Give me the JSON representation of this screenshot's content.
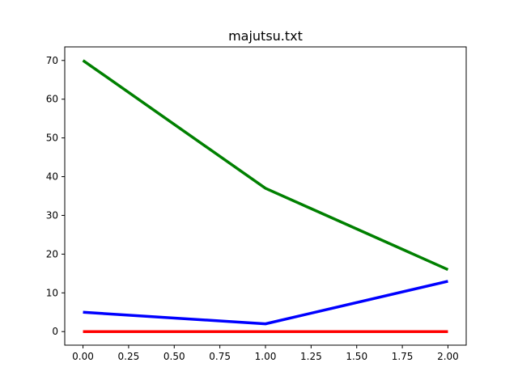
{
  "chart_data": {
    "type": "line",
    "title": "majutsu.txt",
    "xlabel": "",
    "ylabel": "",
    "x": [
      0,
      1,
      2
    ],
    "xlim": [
      -0.1,
      2.1
    ],
    "ylim": [
      -3.5,
      73.5
    ],
    "xticks": [
      0.0,
      0.25,
      0.5,
      0.75,
      1.0,
      1.25,
      1.5,
      1.75,
      2.0
    ],
    "xtick_labels": [
      "0.00",
      "0.25",
      "0.50",
      "0.75",
      "1.00",
      "1.25",
      "1.50",
      "1.75",
      "2.00"
    ],
    "yticks": [
      0,
      10,
      20,
      30,
      40,
      50,
      60,
      70
    ],
    "ytick_labels": [
      "0",
      "10",
      "20",
      "30",
      "40",
      "50",
      "60",
      "70"
    ],
    "grid": false,
    "legend": "none",
    "series": [
      {
        "color": "#ff0000",
        "values": [
          0,
          0,
          0
        ]
      },
      {
        "color": "#0000ff",
        "values": [
          5,
          2,
          13
        ]
      },
      {
        "color": "#008000",
        "values": [
          70,
          37,
          16
        ]
      }
    ]
  }
}
